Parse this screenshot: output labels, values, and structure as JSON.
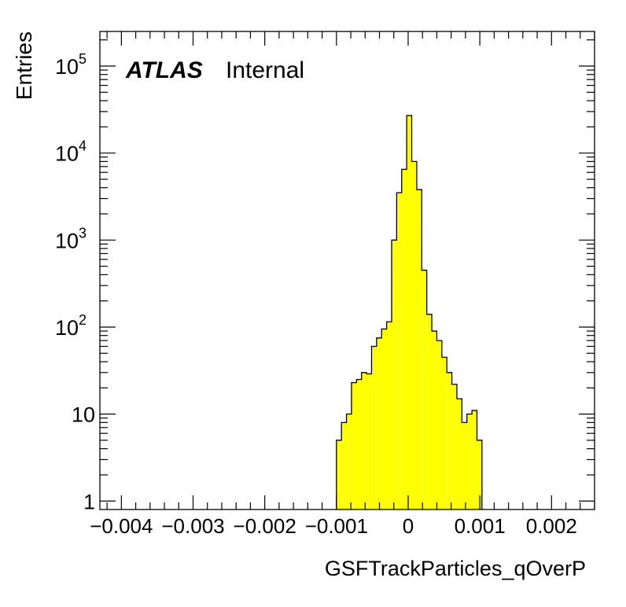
{
  "chart_data": {
    "type": "histogram",
    "xlabel": "GSFTrackParticles_qOverP",
    "ylabel": "Entries",
    "xlim": [
      -0.0043,
      0.0026
    ],
    "ylim": [
      0.8,
      250000
    ],
    "yscale": "log",
    "x_tick_labels": [
      "−0.004",
      "−0.003",
      "−0.002",
      "−0.001",
      "0",
      "0.001",
      "0.002"
    ],
    "x_tick_values": [
      -0.004,
      -0.003,
      -0.002,
      -0.001,
      0,
      0.001,
      0.002
    ],
    "y_ticks": [
      {
        "value": 1,
        "base": "1",
        "exp": ""
      },
      {
        "value": 10,
        "base": "10",
        "exp": ""
      },
      {
        "value": 100,
        "base": "10",
        "exp": "2"
      },
      {
        "value": 1000,
        "base": "10",
        "exp": "3"
      },
      {
        "value": 10000,
        "base": "10",
        "exp": "4"
      },
      {
        "value": 100000,
        "base": "10",
        "exp": "5"
      }
    ],
    "annotation": {
      "bold": "ATLAS",
      "normal": "Internal"
    },
    "fill_color": "#ffff00",
    "line_color": "#000000",
    "legend": "none",
    "grid": false,
    "bin_width": 6.96e-05,
    "bins": [
      {
        "x0": -0.001,
        "y": 5
      },
      {
        "x0": -0.00093,
        "y": 8
      },
      {
        "x0": -0.00086,
        "y": 10
      },
      {
        "x0": -0.00079,
        "y": 23
      },
      {
        "x0": -0.00072,
        "y": 25
      },
      {
        "x0": -0.00065,
        "y": 30
      },
      {
        "x0": -0.00058,
        "y": 29
      },
      {
        "x0": -0.00051,
        "y": 60
      },
      {
        "x0": -0.00044,
        "y": 75
      },
      {
        "x0": -0.00037,
        "y": 95
      },
      {
        "x0": -0.0003,
        "y": 115
      },
      {
        "x0": -0.00023,
        "y": 1000
      },
      {
        "x0": -0.00016,
        "y": 3500
      },
      {
        "x0": -9e-05,
        "y": 6500
      },
      {
        "x0": -2e-05,
        "y": 27000
      },
      {
        "x0": 5e-05,
        "y": 8000
      },
      {
        "x0": 0.00012,
        "y": 3800
      },
      {
        "x0": 0.00019,
        "y": 450
      },
      {
        "x0": 0.00026,
        "y": 140
      },
      {
        "x0": 0.00033,
        "y": 90
      },
      {
        "x0": 0.0004,
        "y": 70
      },
      {
        "x0": 0.00047,
        "y": 45
      },
      {
        "x0": 0.00054,
        "y": 30
      },
      {
        "x0": 0.00061,
        "y": 22
      },
      {
        "x0": 0.00068,
        "y": 15
      },
      {
        "x0": 0.00075,
        "y": 8
      },
      {
        "x0": 0.00082,
        "y": 10
      },
      {
        "x0": 0.00089,
        "y": 11
      },
      {
        "x0": 0.00096,
        "y": 5
      }
    ]
  }
}
